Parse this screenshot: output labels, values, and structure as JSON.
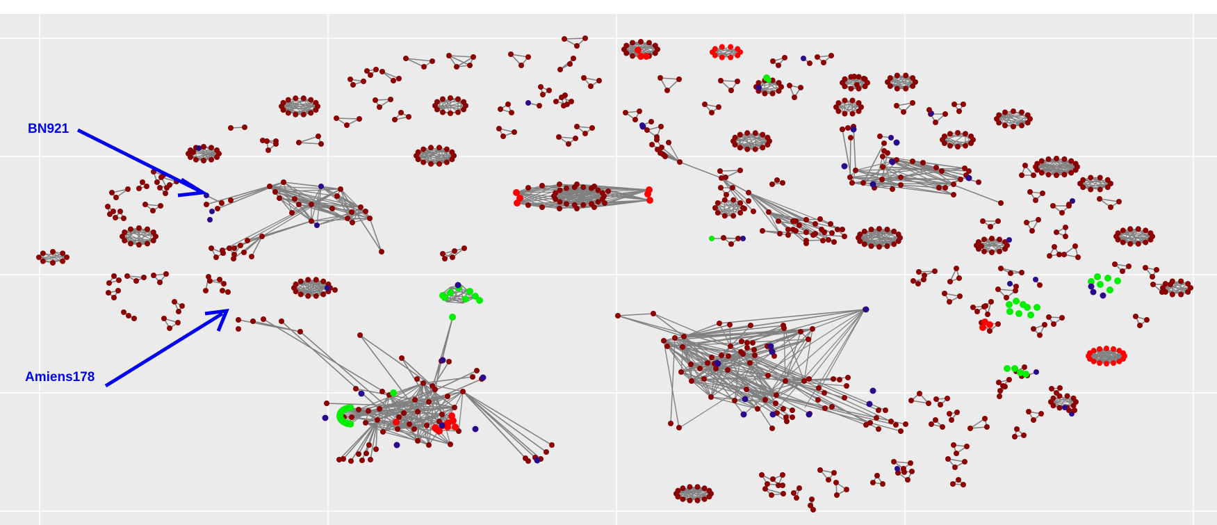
{
  "figure": {
    "panel_background": "#ebebeb",
    "grid_color": "#ffffff",
    "edge_color": "#808080",
    "node_colors": {
      "dark_red": "#8b0000",
      "red": "#ff0000",
      "green": "#00ee00",
      "navy": "#2a0a8a"
    },
    "annotations": [
      {
        "text": "BN921",
        "color": "#0000ee"
      },
      {
        "text": "Amiens178",
        "color": "#0000ee"
      }
    ]
  }
}
